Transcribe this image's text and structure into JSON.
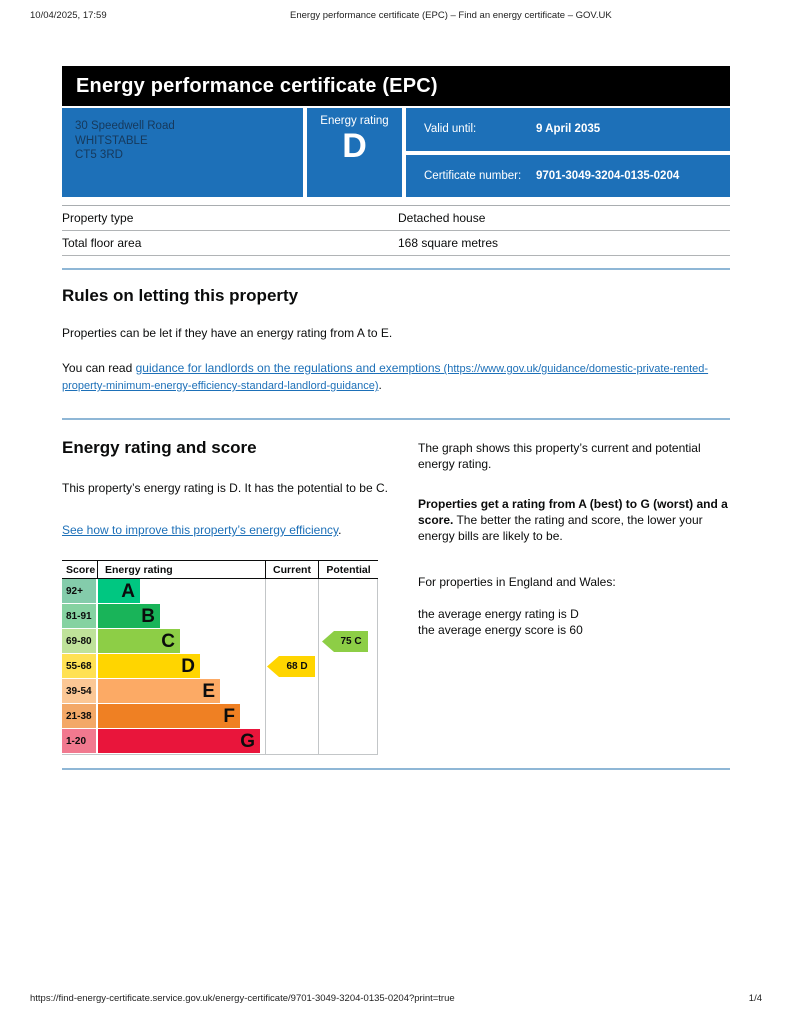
{
  "print_header": {
    "datetime": "10/04/2025, 17:59",
    "title": "Energy performance certificate (EPC) – Find an energy certificate – GOV.UK"
  },
  "banner": {
    "title": "Energy performance certificate (EPC)"
  },
  "summary_box": {
    "box_color": "#1d70b8",
    "address_lines": [
      "30 Speedwell Road",
      "WHITSTABLE",
      "CT5 3RD"
    ],
    "energy_rating_label": "Energy rating",
    "energy_rating": "D",
    "valid_until_label": "Valid until:",
    "valid_until_value": "9 April 2035",
    "certificate_number_label": "Certificate number:",
    "certificate_number_value": "9701-3049-3204-0135-0204"
  },
  "property_details": {
    "rows": [
      {
        "label": "Property type",
        "value": "Detached house"
      },
      {
        "label": "Total floor area",
        "value": "168 square metres"
      }
    ]
  },
  "rules_section": {
    "heading": "Rules on letting this property",
    "para1": "Properties can be let if they have an energy rating from A to E.",
    "para2_prefix": "You can read ",
    "link_text": "guidance for landlords on the regulations and exemptions",
    "link_url_text": " (https://www.gov.uk/guidance/domestic-private-rented-property-minimum-energy-efficiency-standard-landlord-guidance)",
    "para2_suffix": "."
  },
  "rating_section": {
    "heading": "Energy rating and score",
    "para1": "This property’s energy rating is D. It has the potential to be C.",
    "improve_link_text": "See how to improve this property’s energy efficiency",
    "improve_link_suffix": ".",
    "right_para1": "The graph shows this property’s current and potential energy rating.",
    "right_para2_bold": "Properties get a rating from A (best) to G (worst) and a score.",
    "right_para2_rest": " The better the rating and score, the lower your energy bills are likely to be.",
    "right_para3": "For properties in England and Wales:",
    "average_rating_line": "the average energy rating is D",
    "average_score_line": "the average energy score is 60"
  },
  "chart_data": {
    "type": "epc-rating-bands",
    "headers": {
      "score": "Score",
      "rating": "Energy rating",
      "current": "Current",
      "potential": "Potential"
    },
    "bands": [
      {
        "score": "92+",
        "letter": "A",
        "color": "#00c781",
        "tint": "#84ccab"
      },
      {
        "score": "81-91",
        "letter": "B",
        "color": "#19b459",
        "tint": "#85d2a1"
      },
      {
        "score": "69-80",
        "letter": "C",
        "color": "#8dce46",
        "tint": "#bfe29a"
      },
      {
        "score": "55-68",
        "letter": "D",
        "color": "#ffd500",
        "tint": "#ffe153"
      },
      {
        "score": "39-54",
        "letter": "E",
        "color": "#fcaa65",
        "tint": "#fbc795"
      },
      {
        "score": "21-38",
        "letter": "F",
        "color": "#ef8023",
        "tint": "#f3a867"
      },
      {
        "score": "1-20",
        "letter": "G",
        "color": "#e9153b",
        "tint": "#f1798f"
      }
    ],
    "current": {
      "score": 68,
      "band": "D",
      "label": "68 D",
      "color": "#ffd500"
    },
    "potential": {
      "score": 75,
      "band": "C",
      "label": "75 C",
      "color": "#8dce46"
    }
  },
  "print_footer": {
    "url": "https://find-energy-certificate.service.gov.uk/energy-certificate/9701-3049-3204-0135-0204?print=true",
    "page": "1/4"
  }
}
